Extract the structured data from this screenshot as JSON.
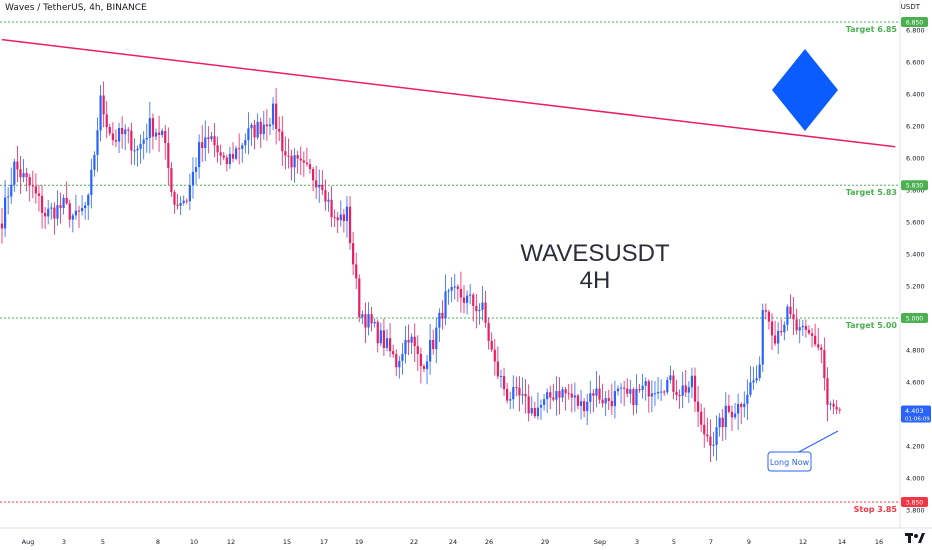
{
  "header": {
    "symbol_title": "Waves / TetherUS, 4h, BINANCE",
    "axis_unit": "USDT"
  },
  "watermark": {
    "line1": "WAVESUSDT",
    "line2": "4H"
  },
  "colors": {
    "up": "#2962ff",
    "down": "#e91e63",
    "target_line": "#4caf50",
    "stop_line": "#f23645",
    "trendline": "#e91e63",
    "diamond": "#0a5cff",
    "callout_border": "#2962ff",
    "price_tag": "#2962ff"
  },
  "chart_data": {
    "type": "candlestick",
    "ylim": [
      3.8,
      7.0
    ],
    "y_ticks": [
      "6.800",
      "6.600",
      "6.400",
      "6.200",
      "6.000",
      "5.800",
      "5.600",
      "5.400",
      "5.200",
      "5.000",
      "4.800",
      "4.600",
      "4.400",
      "4.200",
      "4.000",
      "3.800"
    ],
    "x_tick_labels": [
      "Aug",
      "3",
      "5",
      "8",
      "10",
      "12",
      "15",
      "17",
      "19",
      "22",
      "24",
      "26",
      "29",
      "Sep",
      "3",
      "5",
      "7",
      "9",
      "12",
      "14",
      "16"
    ],
    "levels": [
      {
        "label": "Target 6.85",
        "value": 6.85,
        "tag": "6.850",
        "kind": "target"
      },
      {
        "label": "Target 5.83",
        "value": 5.83,
        "tag": "5.830",
        "kind": "target"
      },
      {
        "label": "Target 5.00",
        "value": 5.0,
        "tag": "5.000",
        "kind": "target"
      },
      {
        "label": "Stop 3.85",
        "value": 3.85,
        "tag": "3.850",
        "kind": "stop"
      }
    ],
    "current_price": {
      "value": 4.403,
      "label": "4.403",
      "countdown": "01:06:09"
    },
    "trendline": {
      "from": {
        "bar": 0,
        "price": 6.74
      },
      "to": {
        "bar": 290,
        "price": 6.07
      }
    },
    "annotation": {
      "text": "Long Now"
    },
    "anchors": [
      [
        0,
        5.62
      ],
      [
        4,
        5.95
      ],
      [
        10,
        5.8
      ],
      [
        14,
        5.65
      ],
      [
        20,
        5.7
      ],
      [
        24,
        5.62
      ],
      [
        28,
        5.72
      ],
      [
        32,
        6.35
      ],
      [
        36,
        6.12
      ],
      [
        40,
        6.15
      ],
      [
        44,
        6.05
      ],
      [
        48,
        6.2
      ],
      [
        52,
        6.15
      ],
      [
        56,
        5.72
      ],
      [
        60,
        5.75
      ],
      [
        64,
        6.05
      ],
      [
        68,
        6.12
      ],
      [
        72,
        5.95
      ],
      [
        76,
        6.05
      ],
      [
        80,
        6.15
      ],
      [
        84,
        6.2
      ],
      [
        88,
        6.28
      ],
      [
        92,
        6.02
      ],
      [
        96,
        5.95
      ],
      [
        100,
        5.9
      ],
      [
        104,
        5.85
      ],
      [
        108,
        5.6
      ],
      [
        112,
        5.65
      ],
      [
        116,
        5.05
      ],
      [
        120,
        4.95
      ],
      [
        124,
        4.85
      ],
      [
        128,
        4.72
      ],
      [
        132,
        4.9
      ],
      [
        136,
        4.7
      ],
      [
        140,
        4.85
      ],
      [
        144,
        5.12
      ],
      [
        148,
        5.15
      ],
      [
        152,
        5.1
      ],
      [
        156,
        5.05
      ],
      [
        160,
        4.7
      ],
      [
        164,
        4.52
      ],
      [
        168,
        4.5
      ],
      [
        172,
        4.42
      ],
      [
        176,
        4.46
      ],
      [
        180,
        4.55
      ],
      [
        184,
        4.52
      ],
      [
        188,
        4.45
      ],
      [
        192,
        4.55
      ],
      [
        196,
        4.48
      ],
      [
        200,
        4.52
      ],
      [
        204,
        4.5
      ],
      [
        208,
        4.55
      ],
      [
        212,
        4.58
      ],
      [
        216,
        4.6
      ],
      [
        220,
        4.55
      ],
      [
        224,
        4.58
      ],
      [
        227,
        4.3
      ],
      [
        231,
        4.24
      ],
      [
        235,
        4.4
      ],
      [
        239,
        4.45
      ],
      [
        243,
        4.58
      ],
      [
        246,
        4.65
      ],
      [
        247,
        5.1
      ],
      [
        251,
        4.9
      ],
      [
        255,
        5.02
      ],
      [
        259,
        4.9
      ],
      [
        263,
        4.88
      ],
      [
        266,
        4.8
      ],
      [
        268,
        4.45
      ],
      [
        272,
        4.4
      ]
    ],
    "bars": 273
  }
}
